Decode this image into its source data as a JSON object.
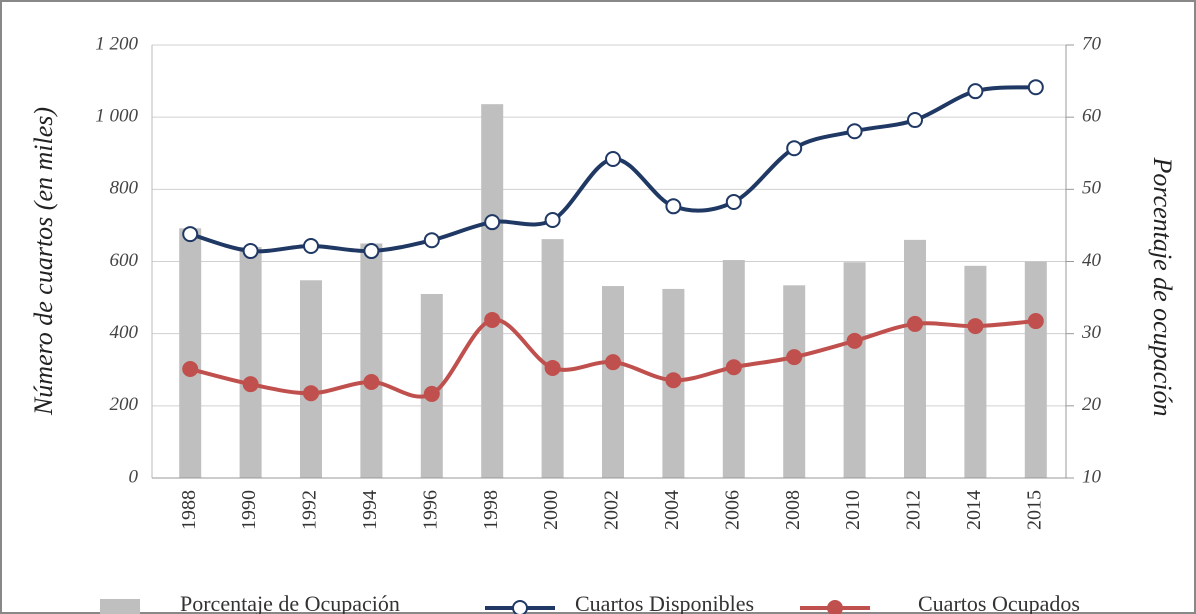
{
  "chart_data": {
    "type": "bar_line",
    "y_label": "Número de cuartos (en miles)",
    "y2_label": "Porcentaje de ocupación",
    "categories": [
      "1988",
      "1990",
      "1992",
      "1994",
      "1996",
      "1998",
      "2000",
      "2002",
      "2004",
      "2006",
      "2008",
      "2010",
      "2012",
      "2014",
      "2015"
    ],
    "series": [
      {
        "name": "Porcentaje de Ocupación",
        "type": "bar",
        "axis": "y2",
        "color": "#bfbfbf",
        "values": [
          44.6,
          42,
          37.4,
          42.5,
          35.5,
          61.8,
          43.1,
          36.6,
          36.2,
          40.2,
          36.7,
          39.9,
          43,
          39.4,
          40
        ]
      },
      {
        "name": "Cuartos Disponibles",
        "type": "line",
        "color": "#1f3864",
        "marker_fill": "#ffffff",
        "values": [
          676,
          629,
          643,
          629,
          659,
          709,
          715,
          884,
          753,
          765,
          914,
          961,
          992,
          1072,
          1083
        ]
      },
      {
        "name": "Cuartos Ocupados",
        "type": "line",
        "color": "#c0504d",
        "marker_fill": "#c0504d",
        "values": [
          302,
          260,
          235,
          266,
          233,
          438,
          305,
          321,
          271,
          307,
          335,
          380,
          427,
          421,
          435
        ]
      }
    ],
    "ylim": [
      0,
      1200
    ],
    "yticks": [
      0,
      200,
      400,
      600,
      800,
      {
        "value": 1000,
        "label": "1 000"
      },
      {
        "value": 1200,
        "label": "1 200"
      }
    ],
    "y2lim": [
      10,
      70
    ],
    "y2ticks": [
      10,
      20,
      30,
      40,
      50,
      60,
      70
    ],
    "grid": true,
    "legend": "bottom"
  }
}
